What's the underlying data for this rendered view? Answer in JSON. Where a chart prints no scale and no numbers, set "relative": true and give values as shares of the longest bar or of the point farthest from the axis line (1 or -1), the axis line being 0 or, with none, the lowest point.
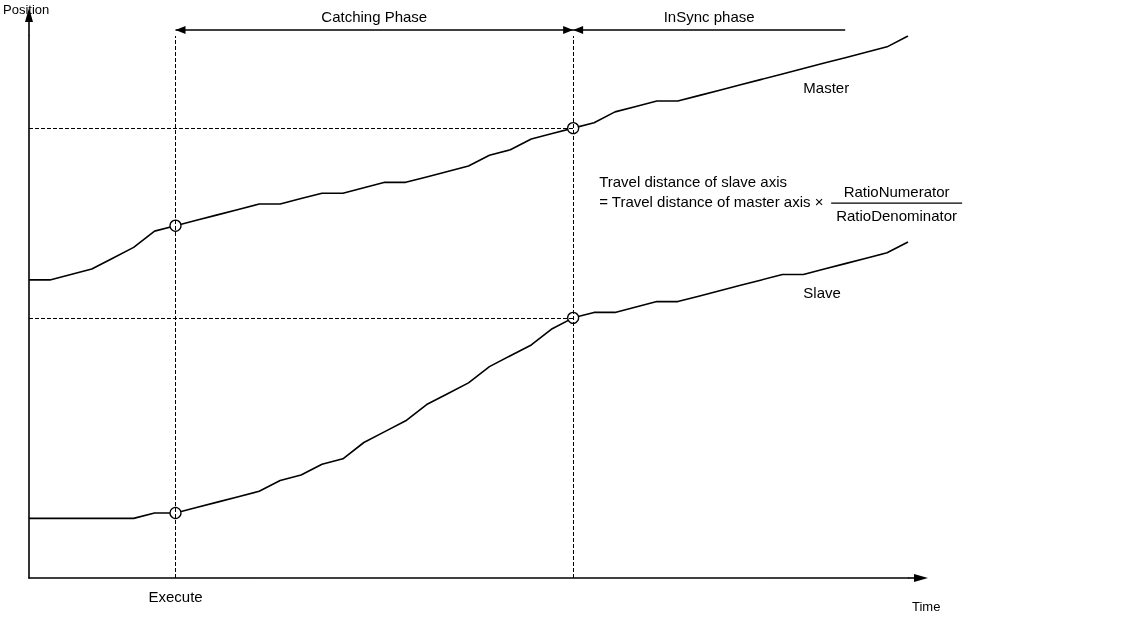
{
  "chart_data": {
    "type": "line",
    "relative": true,
    "xlabel": "Time",
    "ylabel": "Position",
    "categories": [
      null,
      null,
      null,
      null,
      null,
      null,
      null,
      null,
      null,
      null,
      null,
      null,
      null,
      null,
      null,
      null,
      null,
      null,
      null,
      null,
      null,
      null,
      null,
      null,
      null,
      null,
      null,
      null,
      null,
      null,
      null,
      null,
      null,
      null,
      null,
      null,
      null,
      null,
      null,
      null,
      null,
      null,
      null
    ],
    "series": [
      {
        "name": "Master",
        "color": "#000000",
        "values": [
          0.55,
          0.55,
          0.56,
          0.57,
          0.59,
          0.61,
          0.64,
          0.65,
          0.66,
          0.67,
          0.68,
          0.69,
          0.69,
          0.7,
          0.71,
          0.71,
          0.72,
          0.73,
          0.73,
          0.74,
          0.75,
          0.76,
          0.78,
          0.79,
          0.81,
          0.82,
          0.83,
          0.84,
          0.86,
          0.87,
          0.88,
          0.88,
          0.89,
          0.9,
          0.91,
          0.92,
          0.93,
          0.94,
          0.95,
          0.96,
          0.97,
          0.98,
          1
        ]
      },
      {
        "name": "Slave",
        "color": "#000000",
        "values": [
          0.11,
          0.11,
          0.11,
          0.11,
          0.11,
          0.11,
          0.12,
          0.12,
          0.13,
          0.14,
          0.15,
          0.16,
          0.18,
          0.19,
          0.21,
          0.22,
          0.25,
          0.27,
          0.29,
          0.32,
          0.34,
          0.36,
          0.39,
          0.41,
          0.43,
          0.46,
          0.48,
          0.49,
          0.49,
          0.5,
          0.51,
          0.51,
          0.52,
          0.53,
          0.54,
          0.55,
          0.56,
          0.56,
          0.57,
          0.58,
          0.59,
          0.6,
          0.62
        ]
      }
    ],
    "ref_lines": [
      {
        "axis": "y",
        "value": 0.83,
        "line_style": "dashed"
      },
      {
        "axis": "y",
        "value": 0.48,
        "line_style": "dashed"
      }
    ],
    "annotations": [
      "Catching Phase",
      "InSync phase",
      "Travel distance of slave axis",
      "= Travel distance of master axis ×",
      "RatioNumerator",
      "RatioDenominator",
      "Execute"
    ],
    "grid": false,
    "legend": false
  }
}
